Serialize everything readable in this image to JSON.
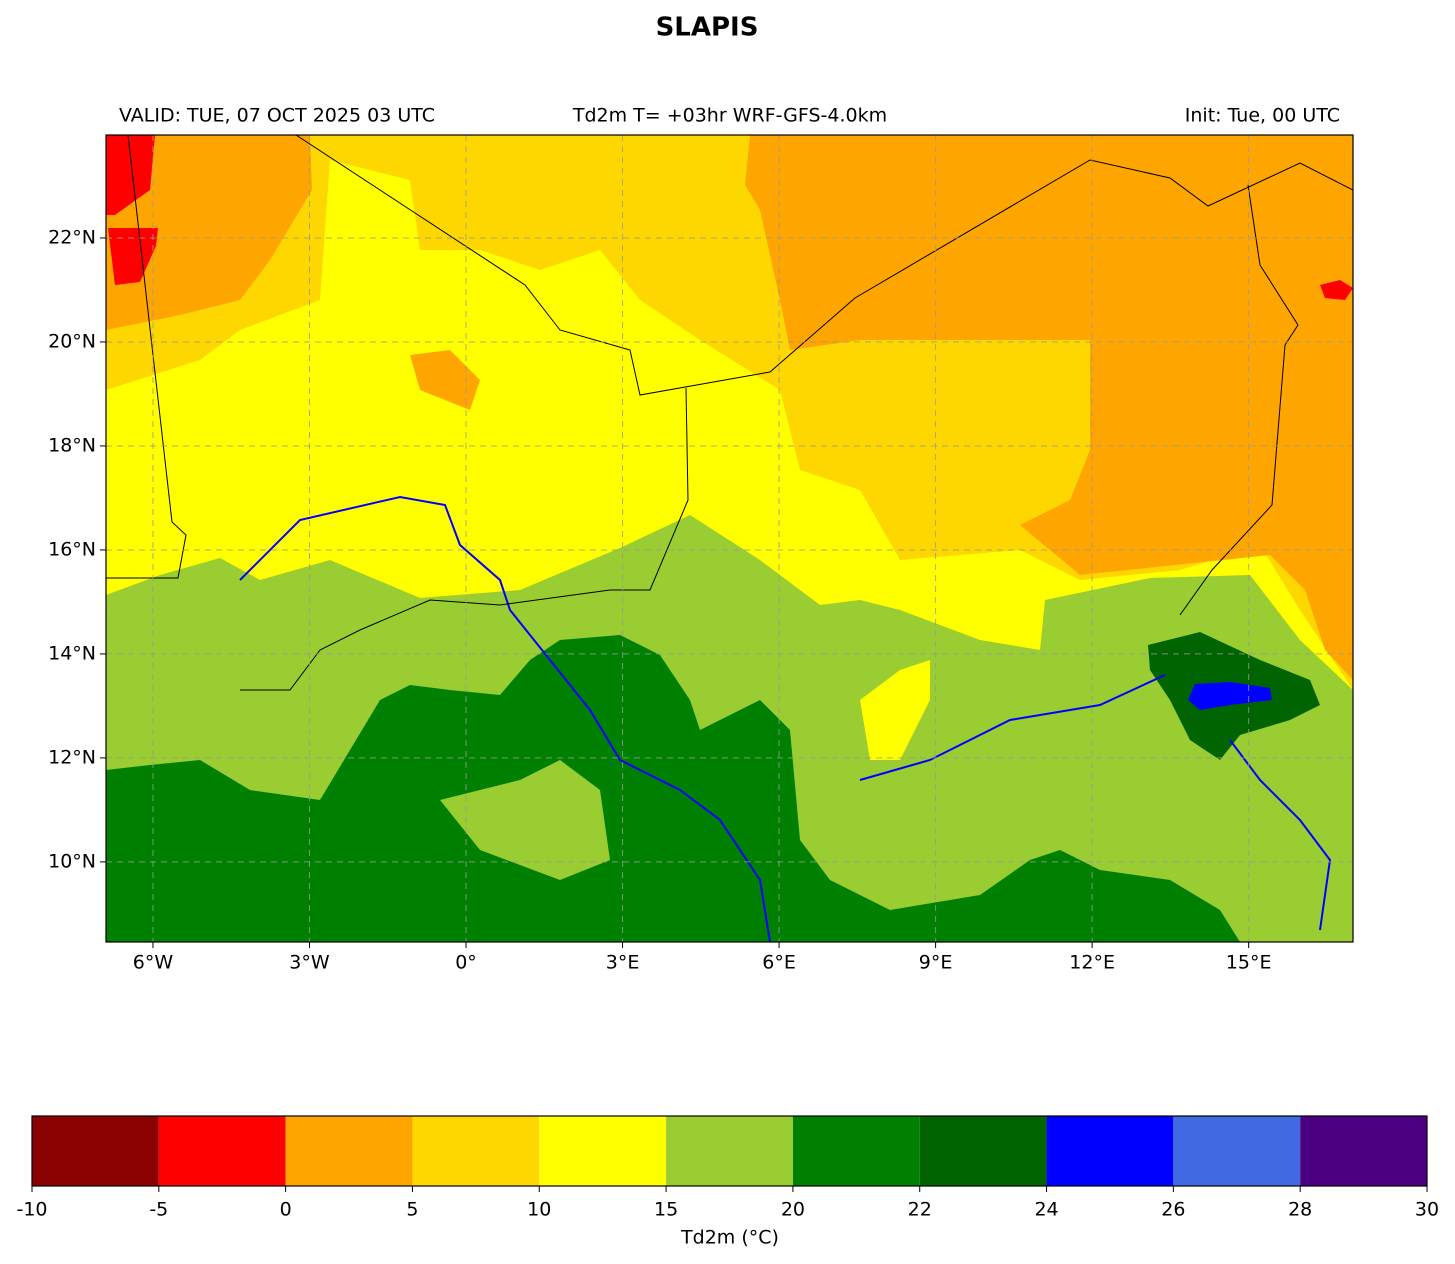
{
  "title": "SLAPIS",
  "subtitle_left": "VALID: TUE, 07 OCT 2025 03 UTC",
  "subtitle_center": "Td2m T= +03hr WRF-GFS-4.0km",
  "subtitle_right": "Init: Tue, 00 UTC",
  "map": {
    "xlim": [
      -6.9,
      17.0
    ],
    "ylim": [
      8.46,
      23.98
    ],
    "xticks": [
      {
        "value": -6,
        "label": "6°W"
      },
      {
        "value": -3,
        "label": "3°W"
      },
      {
        "value": 0,
        "label": "0°"
      },
      {
        "value": 3,
        "label": "3°E"
      },
      {
        "value": 6,
        "label": "6°E"
      },
      {
        "value": 9,
        "label": "9°E"
      },
      {
        "value": 12,
        "label": "12°E"
      },
      {
        "value": 15,
        "label": "15°E"
      }
    ],
    "yticks": [
      {
        "value": 10,
        "label": "10°N"
      },
      {
        "value": 12,
        "label": "12°N"
      },
      {
        "value": 14,
        "label": "14°N"
      },
      {
        "value": 16,
        "label": "16°N"
      },
      {
        "value": 18,
        "label": "18°N"
      },
      {
        "value": 20,
        "label": "20°N"
      },
      {
        "value": 22,
        "label": "22°N"
      }
    ],
    "grid": true
  },
  "colorbar": {
    "boundaries": [
      -10,
      -5,
      0,
      5,
      10,
      15,
      20,
      22,
      24,
      26,
      28,
      30
    ],
    "colors": [
      "#8b0000",
      "#ff0000",
      "#ffa500",
      "#ffd700",
      "#ffff00",
      "#9acd32",
      "#008000",
      "#006400",
      "#0000ff",
      "#4169e1",
      "#4b0082"
    ],
    "label": "Td2m (°C)"
  }
}
